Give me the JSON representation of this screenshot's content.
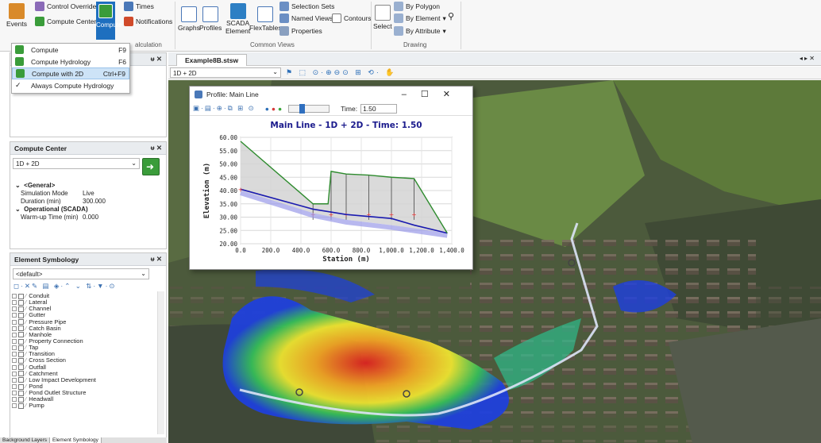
{
  "ribbon": {
    "events": "Events",
    "control_overrides": "Control Overrides",
    "compute_center": "Compute Center",
    "compute": "Compute",
    "times": "Times",
    "notifications": "Notifications",
    "calc_group": "alculation",
    "graphs": "Graphs",
    "profiles": "Profiles",
    "scada": "SCADA",
    "element": "Element",
    "flextables": "FlexTables",
    "selection_sets": "Selection Sets",
    "named_views": "Named Views",
    "contours": "Contours",
    "properties": "Properties",
    "common_views": "Common Views",
    "select": "Select",
    "by_polygon": "By Polygon",
    "by_element": "By Element",
    "by_attribute": "By Attribute",
    "drawing": "Drawing"
  },
  "menu": [
    {
      "label": "Compute",
      "shortcut": "F9"
    },
    {
      "label": "Compute Hydrology",
      "shortcut": "F6"
    },
    {
      "label": "Compute with 2D",
      "shortcut": "Ctrl+F9"
    },
    {
      "label": "Always Compute Hydrology",
      "shortcut": ""
    }
  ],
  "compute_center": {
    "title": "Compute Center",
    "scenario": "1D + 2D",
    "general": "<General>",
    "props": [
      {
        "k": "Simulation Mode",
        "v": "Live"
      },
      {
        "k": "Duration (min)",
        "v": "300.000"
      }
    ],
    "scada_cat": "Operational (SCADA)",
    "warmup": {
      "k": "Warm-up Time (min)",
      "v": "0.000"
    }
  },
  "symbology": {
    "title": "Element Symbology",
    "profile": "<default>",
    "items": [
      "Conduit",
      "Lateral",
      "Channel",
      "Gutter",
      "Pressure Pipe",
      "Catch Basin",
      "Manhole",
      "Property Connection",
      "Tap",
      "Transition",
      "Cross Section",
      "Outfall",
      "Catchment",
      "Low Impact Development",
      "Pond",
      "Pond Outlet Structure",
      "Headwall",
      "Pump"
    ]
  },
  "bottom_tabs": [
    "Background Layers",
    "Element Symbology"
  ],
  "doc": {
    "tab": "Example8B.stsw",
    "scenario": "1D + 2D"
  },
  "profile": {
    "window_title": "Profile: Main Line",
    "time_label": "Time:",
    "time_value": "1.50"
  },
  "chart_data": {
    "type": "line",
    "title": "Main Line - 1D + 2D - Time: 1.50",
    "xlabel": "Station (m)",
    "ylabel": "Elevation (m)",
    "xlim": [
      0,
      1400
    ],
    "ylim": [
      20,
      60
    ],
    "xticks": [
      "0.0",
      "200.0",
      "400.0",
      "600.0",
      "800.0",
      "1,000.0",
      "1,200.0",
      "1,400.0"
    ],
    "yticks": [
      "20.00",
      "25.00",
      "30.00",
      "35.00",
      "40.00",
      "45.00",
      "50.00",
      "55.00",
      "60.00"
    ],
    "ground": {
      "x": [
        0,
        480,
        580,
        600,
        700,
        850,
        1000,
        1150,
        1370
      ],
      "y": [
        58.5,
        35,
        35,
        47.2,
        46.2,
        45.8,
        45,
        44.5,
        24
      ]
    },
    "invert": {
      "x": [
        0,
        480,
        700,
        1000,
        1370
      ],
      "y": [
        40,
        31.5,
        29,
        27,
        24
      ]
    },
    "hgl": {
      "x": [
        0,
        480,
        700,
        1000,
        1150,
        1370
      ],
      "y": [
        40.5,
        33,
        31,
        29.5,
        27,
        24
      ]
    },
    "node_x": [
      480,
      600,
      700,
      850,
      1000,
      1150
    ],
    "colors": {
      "ground": "#2e8b2e",
      "hgl": "#1a1ab0",
      "fill": "#d3d3d3",
      "node": "#e83030"
    }
  }
}
